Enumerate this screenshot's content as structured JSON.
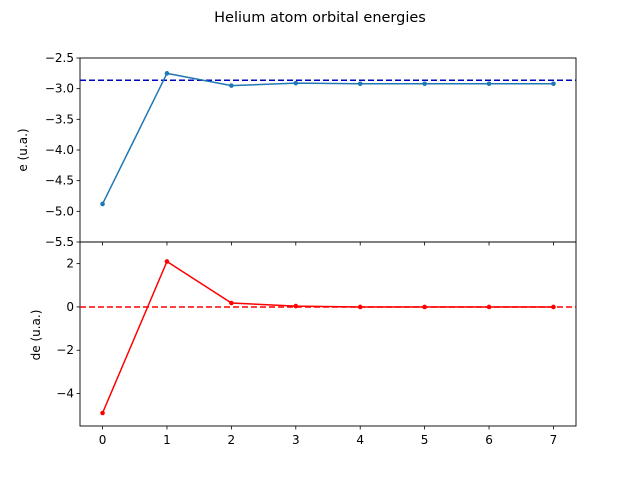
{
  "title": "Helium atom orbital energies",
  "colors": {
    "top_line": "#1f77b4",
    "top_reference": "#0000bf",
    "bottom_line": "#ff0000",
    "bottom_reference": "#ff0000"
  },
  "chart_data": [
    {
      "type": "line",
      "ylabel": "e (u.a.)",
      "x": [
        0,
        1,
        2,
        3,
        4,
        5,
        6,
        7
      ],
      "ylim": [
        -5.5,
        -2.5
      ],
      "yticks": [
        -2.5,
        -3.0,
        -3.5,
        -4.0,
        -4.5,
        -5.0,
        -5.5
      ],
      "ytick_labels": [
        "−2.5",
        "−3.0",
        "−3.5",
        "−4.0",
        "−4.5",
        "−5.0",
        "−5.5"
      ],
      "series": [
        {
          "values": [
            -4.88,
            -2.75,
            -2.95,
            -2.91,
            -2.92,
            -2.92,
            -2.92,
            -2.92
          ]
        }
      ],
      "reference_line": {
        "y": -2.862,
        "style": "dashed"
      },
      "grid": false
    },
    {
      "type": "line",
      "ylabel": "de (u.a.)",
      "x": [
        0,
        1,
        2,
        3,
        4,
        5,
        6,
        7
      ],
      "xlim": [
        -0.35,
        7.35
      ],
      "xtick_labels": [
        "0",
        "1",
        "2",
        "3",
        "4",
        "5",
        "6",
        "7"
      ],
      "ylim": [
        -5.5,
        3.0
      ],
      "yticks": [
        2,
        0,
        -2,
        -4
      ],
      "ytick_labels": [
        "2",
        "0",
        "−2",
        "−4"
      ],
      "series": [
        {
          "values": [
            -4.9,
            2.1,
            0.18,
            0.04,
            0.0,
            0.0,
            0.0,
            0.0
          ]
        }
      ],
      "reference_line": {
        "y": 0,
        "style": "dashed"
      },
      "grid": false
    }
  ]
}
